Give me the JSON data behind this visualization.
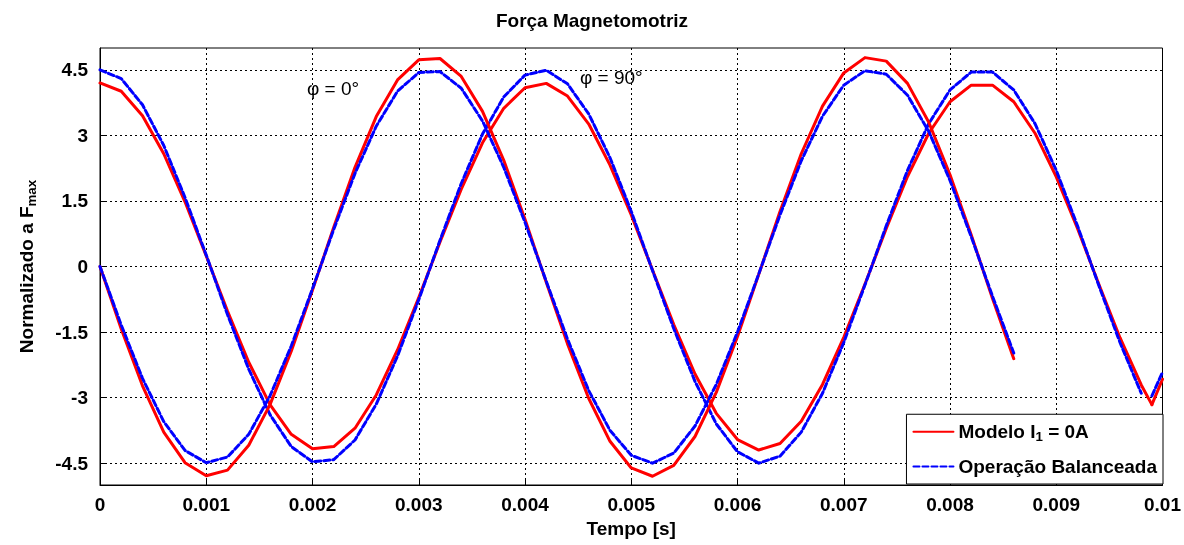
{
  "chart_data": {
    "type": "line",
    "title": "Força Magnetomotriz",
    "xlabel": "Tempo [s]",
    "ylabel": "Normalizado a F$_{max}$",
    "x": [
      0,
      0.0002,
      0.0004,
      0.0006,
      0.0008,
      0.001,
      0.0012,
      0.0014,
      0.0016,
      0.0018,
      0.002,
      0.0022,
      0.0024,
      0.0026,
      0.0028,
      0.003,
      0.0032,
      0.0034,
      0.0036,
      0.0038,
      0.004,
      0.0042,
      0.0044,
      0.0046,
      0.0048,
      0.005,
      0.0052,
      0.0054,
      0.0056,
      0.0058,
      0.006,
      0.0062,
      0.0064,
      0.0066,
      0.0068,
      0.007,
      0.0072,
      0.0074,
      0.0076,
      0.0078,
      0.008,
      0.0082,
      0.0084,
      0.0086,
      0.0088,
      0.009,
      0.0092,
      0.0094,
      0.0096,
      0.0098,
      0.0099,
      0.01
    ],
    "series": [
      {
        "name": "Modelo I$_{1}$ = 0A",
        "color": "#ff0000",
        "line_style": "solid",
        "values": [
          4.2,
          4.01,
          3.45,
          2.58,
          1.48,
          0.24,
          -1.02,
          -2.19,
          -3.16,
          -3.84,
          -4.17,
          -4.12,
          -3.7,
          -2.94,
          -1.91,
          -0.71,
          0.56,
          1.77,
          2.83,
          3.62,
          4.09,
          4.19,
          3.9,
          3.26,
          2.32,
          1.18,
          -0.08,
          -1.33,
          -2.46,
          -3.36,
          -3.96,
          -4.2,
          -4.05,
          -3.54,
          -2.7,
          -1.62,
          -0.4,
          0.87,
          2.06,
          3.05,
          3.77,
          4.15,
          4.15,
          3.77,
          3.05,
          2.05,
          0.87,
          -0.4,
          -1.63,
          -2.71,
          -3.16,
          null
        ]
      },
      {
        "name": "Operação Balanceada",
        "color": "#0000ff",
        "line_style": "dashed",
        "values": [
          4.5,
          4.3,
          3.7,
          2.77,
          1.58,
          0.26,
          -1.1,
          -2.35,
          -3.39,
          -4.12,
          -4.47,
          -4.42,
          -3.97,
          -3.15,
          -2.05,
          -0.76,
          0.6,
          1.9,
          3.03,
          3.88,
          4.38,
          4.49,
          4.18,
          3.49,
          2.49,
          1.26,
          -0.09,
          -1.42,
          -2.63,
          -3.6,
          -4.24,
          -4.5,
          -4.34,
          -3.79,
          -2.9,
          -1.74,
          -0.42,
          0.93,
          2.2,
          3.27,
          4.04,
          4.45,
          4.45,
          4.04,
          3.27,
          2.2,
          0.93,
          -0.43,
          -1.74,
          -2.9,
          null,
          null
        ]
      },
      {
        "color": "#ff0000",
        "line_style": "solid",
        "values": [
          0,
          -1.43,
          -2.73,
          -3.79,
          -4.49,
          -4.79,
          -4.66,
          -4.09,
          -3.16,
          -1.94,
          -0.54,
          0.9,
          2.27,
          3.43,
          4.27,
          4.73,
          4.76,
          4.35,
          3.55,
          2.43,
          1.08,
          -0.36,
          -1.77,
          -3.02,
          -4.0,
          -4.61,
          -4.8,
          -4.55,
          -3.89,
          -2.88,
          -1.6,
          -0.18,
          1.26,
          2.58,
          3.67,
          4.43,
          4.78,
          4.7,
          4.19,
          3.3,
          2.1,
          0.72,
          -0.73,
          -2.11,
          null,
          null,
          null,
          null,
          null,
          null,
          -3.16,
          -2.58
        ]
      },
      {
        "color": "#0000ff",
        "line_style": "dashed",
        "values": [
          0,
          -1.34,
          -2.56,
          -3.55,
          -4.21,
          -4.49,
          -4.36,
          -3.84,
          -2.96,
          -1.82,
          -0.51,
          0.85,
          2.13,
          3.21,
          4.01,
          4.44,
          4.46,
          4.08,
          3.33,
          2.27,
          1.01,
          -0.34,
          -1.66,
          -2.84,
          -3.75,
          -4.32,
          -4.5,
          -4.27,
          -3.65,
          -2.7,
          -1.5,
          -0.17,
          1.18,
          2.42,
          3.44,
          4.15,
          4.48,
          4.4,
          3.92,
          3.09,
          1.97,
          0.68,
          -0.68,
          -1.98,
          null,
          null,
          null,
          null,
          null,
          null,
          -2.96,
          -2.42
        ]
      }
    ],
    "annotations": [
      "φ = 0°",
      "φ = 90°"
    ],
    "xlim": [
      0,
      0.01
    ],
    "xticks": [
      0,
      0.001,
      0.002,
      0.003,
      0.004,
      0.005,
      0.006,
      0.007,
      0.008,
      0.009,
      0.01
    ],
    "ylim": [
      -5,
      5
    ],
    "yticks": [
      -4.5,
      -3,
      -1.5,
      0,
      1.5,
      3,
      4.5
    ],
    "grid": true,
    "legend": "bottom right",
    "marker": "none"
  }
}
